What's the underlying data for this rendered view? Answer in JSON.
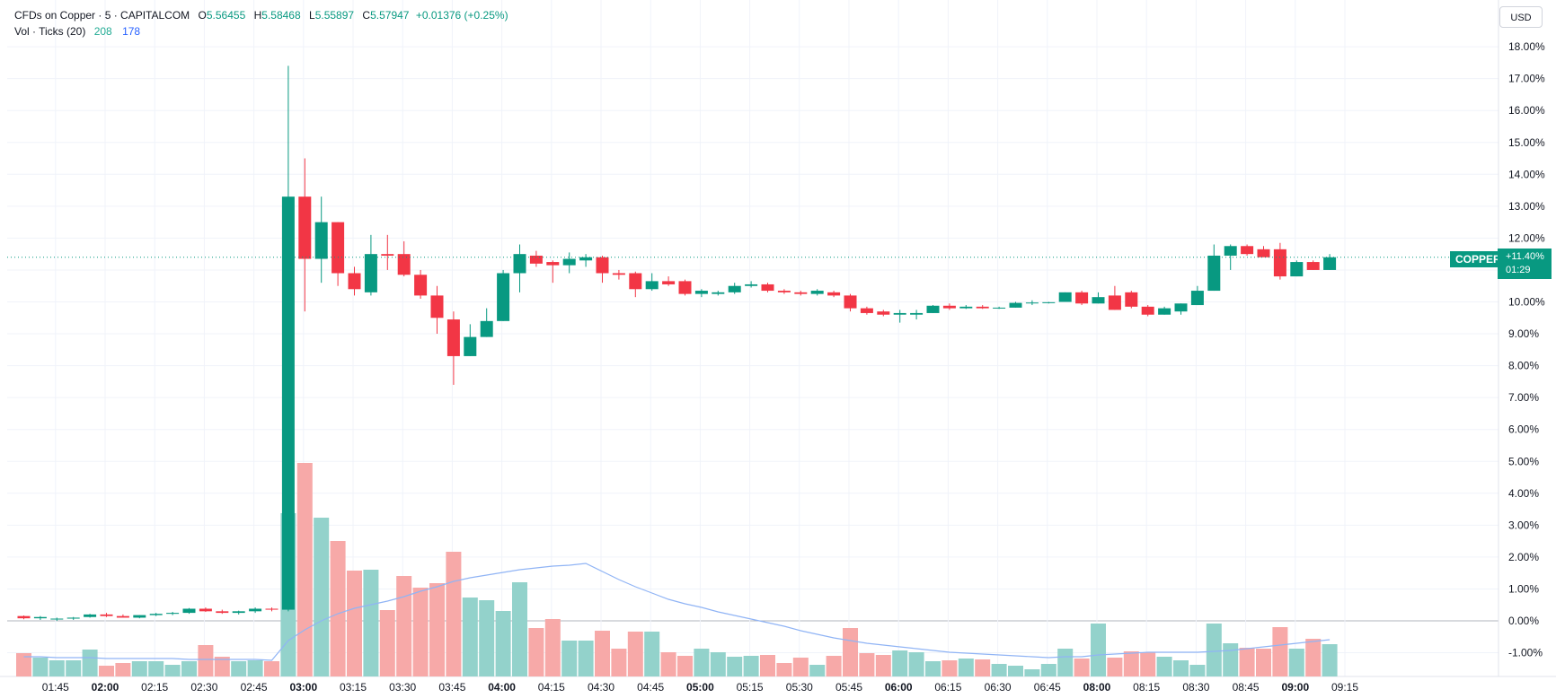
{
  "legend": {
    "title": "CFDs on Copper · 5 · CAPITALCOM",
    "o_label": "O",
    "o_value": "5.56455",
    "h_label": "H",
    "h_value": "5.58468",
    "l_label": "L",
    "l_value": "5.55897",
    "c_label": "C",
    "c_value": "5.57947",
    "change": "+0.01376 (+0.25%)",
    "volume_label": "Vol · Ticks (20)",
    "volume_value": "208",
    "volume_ma_value": "178"
  },
  "price_axis": {
    "currency_button": "USD",
    "symbol_tag": "COPPER",
    "last_change": "+11.40%",
    "countdown": "01:29"
  },
  "colors": {
    "up": "#089981",
    "down": "#f23645",
    "vol_up": "#93d2cb",
    "vol_down": "#f7a9a8",
    "ma_line": "#90b4f5",
    "grid": "#f0f3fa",
    "zero_line": "#b2b5be"
  },
  "chart_data": {
    "type": "candlestick",
    "y_unit": "percent change",
    "ylim": [
      -1.7,
      18.6
    ],
    "y_ticks": [
      "18.00%",
      "17.00%",
      "16.00%",
      "15.00%",
      "14.00%",
      "13.00%",
      "12.00%",
      "11.00%",
      "10.00%",
      "9.00%",
      "8.00%",
      "7.00%",
      "6.00%",
      "5.00%",
      "4.00%",
      "3.00%",
      "2.00%",
      "1.00%",
      "0.00%",
      "-1.00%"
    ],
    "x_ticks": [
      {
        "label": "01:45",
        "bold": false
      },
      {
        "label": "02:00",
        "bold": true
      },
      {
        "label": "02:15",
        "bold": false
      },
      {
        "label": "02:30",
        "bold": false
      },
      {
        "label": "02:45",
        "bold": false
      },
      {
        "label": "03:00",
        "bold": true
      },
      {
        "label": "03:15",
        "bold": false
      },
      {
        "label": "03:30",
        "bold": false
      },
      {
        "label": "03:45",
        "bold": false
      },
      {
        "label": "04:00",
        "bold": true
      },
      {
        "label": "04:15",
        "bold": false
      },
      {
        "label": "04:30",
        "bold": false
      },
      {
        "label": "04:45",
        "bold": false
      },
      {
        "label": "05:00",
        "bold": true
      },
      {
        "label": "05:15",
        "bold": false
      },
      {
        "label": "05:30",
        "bold": false
      },
      {
        "label": "05:45",
        "bold": false
      },
      {
        "label": "06:00",
        "bold": true
      },
      {
        "label": "06:15",
        "bold": false
      },
      {
        "label": "06:30",
        "bold": false
      },
      {
        "label": "06:45",
        "bold": false
      },
      {
        "label": "08:00",
        "bold": true
      },
      {
        "label": "08:15",
        "bold": false
      },
      {
        "label": "08:30",
        "bold": false
      },
      {
        "label": "08:45",
        "bold": false
      },
      {
        "label": "09:00",
        "bold": true
      },
      {
        "label": "09:15",
        "bold": false
      }
    ],
    "last_value_pct": 11.4,
    "candles": [
      [
        0.15,
        0.17,
        0.05,
        0.08
      ],
      [
        0.08,
        0.15,
        0.03,
        0.12
      ],
      [
        0.05,
        0.1,
        0.0,
        0.07
      ],
      [
        0.07,
        0.12,
        0.03,
        0.1
      ],
      [
        0.12,
        0.22,
        0.1,
        0.2
      ],
      [
        0.2,
        0.25,
        0.12,
        0.15
      ],
      [
        0.15,
        0.2,
        0.12,
        0.1
      ],
      [
        0.1,
        0.18,
        0.08,
        0.18
      ],
      [
        0.18,
        0.25,
        0.15,
        0.22
      ],
      [
        0.22,
        0.28,
        0.18,
        0.25
      ],
      [
        0.25,
        0.4,
        0.22,
        0.38
      ],
      [
        0.38,
        0.42,
        0.28,
        0.3
      ],
      [
        0.3,
        0.35,
        0.22,
        0.25
      ],
      [
        0.25,
        0.32,
        0.2,
        0.3
      ],
      [
        0.3,
        0.42,
        0.25,
        0.38
      ],
      [
        0.38,
        0.42,
        0.3,
        0.35
      ],
      [
        0.35,
        17.4,
        0.3,
        13.3
      ],
      [
        13.3,
        14.5,
        9.7,
        11.35
      ],
      [
        11.35,
        13.3,
        10.6,
        12.5
      ],
      [
        12.5,
        12.5,
        10.5,
        10.9
      ],
      [
        10.9,
        11.1,
        10.2,
        10.4
      ],
      [
        10.3,
        12.1,
        10.2,
        11.5
      ],
      [
        11.5,
        12.1,
        11.0,
        11.45
      ],
      [
        11.5,
        11.9,
        10.8,
        10.85
      ],
      [
        10.85,
        11.0,
        10.1,
        10.2
      ],
      [
        10.2,
        10.5,
        9.0,
        9.5
      ],
      [
        9.45,
        9.7,
        7.4,
        8.3
      ],
      [
        8.3,
        9.3,
        8.3,
        8.9
      ],
      [
        8.9,
        9.8,
        8.9,
        9.4
      ],
      [
        9.4,
        11.0,
        9.4,
        10.9
      ],
      [
        10.9,
        11.8,
        10.3,
        11.5
      ],
      [
        11.45,
        11.6,
        11.1,
        11.2
      ],
      [
        11.25,
        11.3,
        10.6,
        11.15
      ],
      [
        11.15,
        11.55,
        10.9,
        11.35
      ],
      [
        11.3,
        11.5,
        11.1,
        11.4
      ],
      [
        11.4,
        11.45,
        10.6,
        10.9
      ],
      [
        10.9,
        11.0,
        10.7,
        10.85
      ],
      [
        10.9,
        10.95,
        10.15,
        10.4
      ],
      [
        10.4,
        10.9,
        10.35,
        10.65
      ],
      [
        10.65,
        10.8,
        10.5,
        10.55
      ],
      [
        10.65,
        10.7,
        10.2,
        10.25
      ],
      [
        10.25,
        10.4,
        10.15,
        10.35
      ],
      [
        10.25,
        10.35,
        10.2,
        10.3
      ],
      [
        10.3,
        10.6,
        10.25,
        10.5
      ],
      [
        10.5,
        10.65,
        10.45,
        10.55
      ],
      [
        10.55,
        10.6,
        10.3,
        10.35
      ],
      [
        10.35,
        10.4,
        10.25,
        10.3
      ],
      [
        10.3,
        10.35,
        10.2,
        10.25
      ],
      [
        10.25,
        10.4,
        10.2,
        10.35
      ],
      [
        10.3,
        10.35,
        10.15,
        10.2
      ],
      [
        10.2,
        10.25,
        9.7,
        9.8
      ],
      [
        9.8,
        9.85,
        9.6,
        9.65
      ],
      [
        9.7,
        9.75,
        9.55,
        9.6
      ],
      [
        9.6,
        9.75,
        9.35,
        9.65
      ],
      [
        9.6,
        9.75,
        9.45,
        9.65
      ],
      [
        9.65,
        9.9,
        9.65,
        9.88
      ],
      [
        9.88,
        9.95,
        9.75,
        9.8
      ],
      [
        9.8,
        9.9,
        9.78,
        9.85
      ],
      [
        9.85,
        9.9,
        9.78,
        9.8
      ],
      [
        9.8,
        9.85,
        9.78,
        9.82
      ],
      [
        9.82,
        10.0,
        9.82,
        9.97
      ],
      [
        9.97,
        10.05,
        9.9,
        9.98
      ],
      [
        9.98,
        10.0,
        9.95,
        9.99
      ],
      [
        10.0,
        10.3,
        10.0,
        10.3
      ],
      [
        10.3,
        10.35,
        9.9,
        9.95
      ],
      [
        9.95,
        10.3,
        9.95,
        10.15
      ],
      [
        10.2,
        10.5,
        9.75,
        9.75
      ],
      [
        10.3,
        10.35,
        9.8,
        9.85
      ],
      [
        9.85,
        9.9,
        9.55,
        9.6
      ],
      [
        9.6,
        9.85,
        9.6,
        9.8
      ],
      [
        9.7,
        9.95,
        9.6,
        9.95
      ],
      [
        9.9,
        10.5,
        9.9,
        10.35
      ],
      [
        10.35,
        11.8,
        10.35,
        11.45
      ],
      [
        11.45,
        11.8,
        11.0,
        11.75
      ],
      [
        11.75,
        11.8,
        11.45,
        11.5
      ],
      [
        11.65,
        11.75,
        11.45,
        11.4
      ],
      [
        11.65,
        11.85,
        10.7,
        10.8
      ],
      [
        10.8,
        11.3,
        10.8,
        11.25
      ],
      [
        11.25,
        11.3,
        11.0,
        11.0
      ],
      [
        11.0,
        11.5,
        11.0,
        11.4
      ]
    ],
    "volume_relative": [
      0.26,
      0.21,
      0.18,
      0.18,
      0.3,
      0.12,
      0.15,
      0.17,
      0.17,
      0.13,
      0.17,
      0.35,
      0.22,
      0.17,
      0.18,
      0.17,
      1.82,
      2.38,
      1.77,
      1.51,
      1.18,
      1.19,
      0.74,
      1.12,
      0.99,
      1.04,
      1.39,
      0.88,
      0.85,
      0.73,
      1.05,
      0.54,
      0.64,
      0.4,
      0.4,
      0.51,
      0.31,
      0.5,
      0.5,
      0.27,
      0.23,
      0.31,
      0.27,
      0.22,
      0.23,
      0.24,
      0.15,
      0.21,
      0.13,
      0.23,
      0.54,
      0.26,
      0.24,
      0.29,
      0.27,
      0.17,
      0.18,
      0.2,
      0.19,
      0.14,
      0.12,
      0.08,
      0.14,
      0.31,
      0.2,
      0.59,
      0.21,
      0.28,
      0.27,
      0.22,
      0.18,
      0.13,
      0.59,
      0.37,
      0.32,
      0.31,
      0.55,
      0.31,
      0.42,
      0.36
    ],
    "volume_ma_relative": [
      0.22,
      0.22,
      0.21,
      0.21,
      0.21,
      0.2,
      0.2,
      0.2,
      0.2,
      0.2,
      0.19,
      0.19,
      0.19,
      0.19,
      0.19,
      0.18,
      0.4,
      0.52,
      0.62,
      0.7,
      0.76,
      0.8,
      0.84,
      0.89,
      0.95,
      1.0,
      1.06,
      1.1,
      1.13,
      1.16,
      1.19,
      1.21,
      1.23,
      1.24,
      1.26,
      1.17,
      1.08,
      1.0,
      0.93,
      0.86,
      0.81,
      0.77,
      0.72,
      0.68,
      0.64,
      0.6,
      0.56,
      0.51,
      0.47,
      0.43,
      0.4,
      0.37,
      0.35,
      0.33,
      0.31,
      0.29,
      0.27,
      0.26,
      0.25,
      0.24,
      0.23,
      0.22,
      0.21,
      0.22,
      0.22,
      0.24,
      0.25,
      0.26,
      0.27,
      0.27,
      0.27,
      0.27,
      0.28,
      0.29,
      0.31,
      0.33,
      0.35,
      0.37,
      0.39,
      0.41
    ]
  }
}
